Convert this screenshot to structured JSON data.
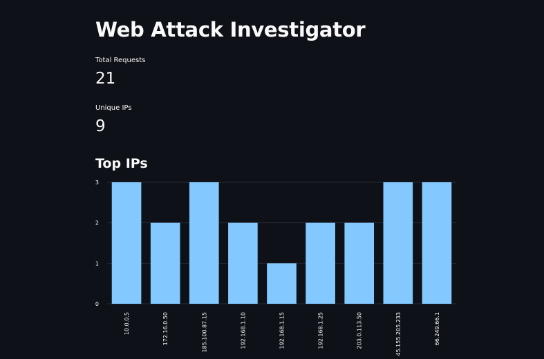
{
  "app": {
    "title": "Web Attack Investigator"
  },
  "metrics": [
    {
      "label": "Total Requests",
      "value": "21"
    },
    {
      "label": "Unique IPs",
      "value": "9"
    }
  ],
  "section": {
    "top_ips_header": "Top IPs"
  },
  "colors": {
    "background": "#0e1117",
    "bar": "#83c9ff",
    "grid": "#262a33",
    "text": "#fafafa"
  },
  "chart_data": {
    "type": "bar",
    "title": "",
    "xlabel": "",
    "ylabel": "",
    "categories": [
      "10.0.0.5",
      "172.16.0.50",
      "185.100.87.15",
      "192.168.1.10",
      "192.168.1.15",
      "192.168.1.25",
      "203.0.113.50",
      "45.155.205.233",
      "66.249.66.1"
    ],
    "values": [
      3,
      2,
      3,
      2,
      1,
      2,
      2,
      3,
      3
    ],
    "yticks": [
      0,
      1,
      2,
      3
    ],
    "ylim": [
      0,
      3
    ],
    "grid": true,
    "x_tick_rotation": "vertical"
  }
}
